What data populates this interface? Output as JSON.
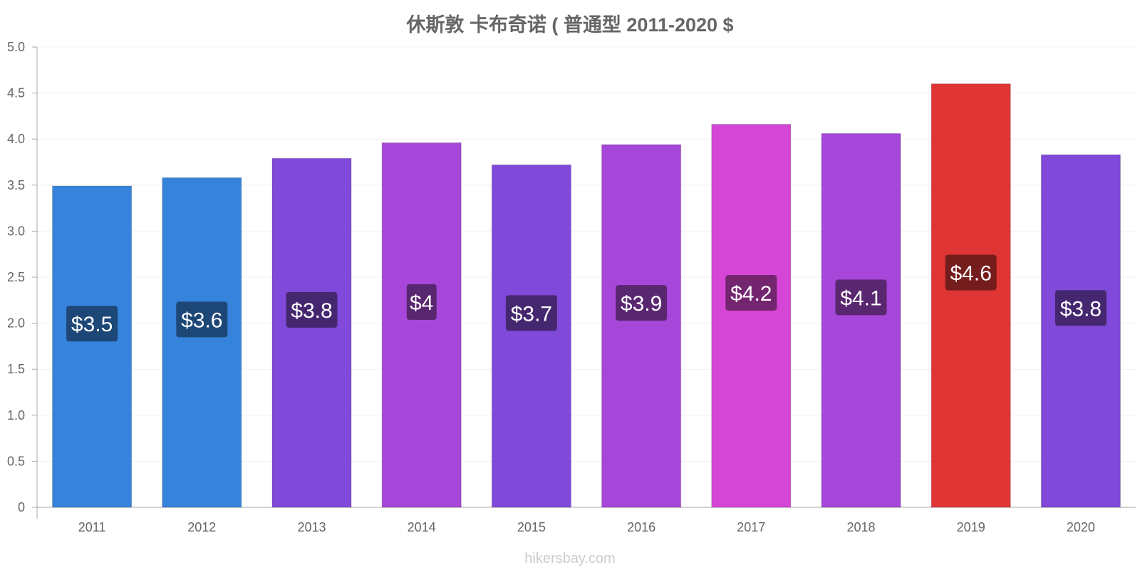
{
  "chart_data": {
    "type": "bar",
    "title": "休斯敦 卡布奇诺 ( 普通型 2011-2020 $",
    "categories": [
      "2011",
      "2012",
      "2013",
      "2014",
      "2015",
      "2016",
      "2017",
      "2018",
      "2019",
      "2020"
    ],
    "values": [
      3.49,
      3.58,
      3.79,
      3.96,
      3.72,
      3.94,
      4.16,
      4.06,
      4.6,
      3.83
    ],
    "value_labels": [
      "$3.5",
      "$3.6",
      "$3.8",
      "$4",
      "$3.7",
      "$3.9",
      "$4.2",
      "$4.1",
      "$4.6",
      "$3.8"
    ],
    "bar_colors": [
      "#3683dc",
      "#3683dc",
      "#8049d9",
      "#a647d9",
      "#8049d9",
      "#a647d9",
      "#d646d6",
      "#a647d9",
      "#e03535",
      "#8049d9"
    ],
    "label_bg_colors": [
      "#1d4777",
      "#1d4777",
      "#452770",
      "#592670",
      "#452770",
      "#592670",
      "#74256f",
      "#592670",
      "#751c1c",
      "#452770"
    ],
    "ylim": [
      0,
      5
    ],
    "yticks": [
      "0",
      "0.5",
      "1.0",
      "1.5",
      "2.0",
      "2.5",
      "3.0",
      "3.5",
      "4.0",
      "4.5",
      "5.0"
    ],
    "xlabel": "",
    "ylabel": "",
    "grid": true,
    "legend": "none"
  },
  "footer": {
    "text": "hikersbay.com"
  }
}
